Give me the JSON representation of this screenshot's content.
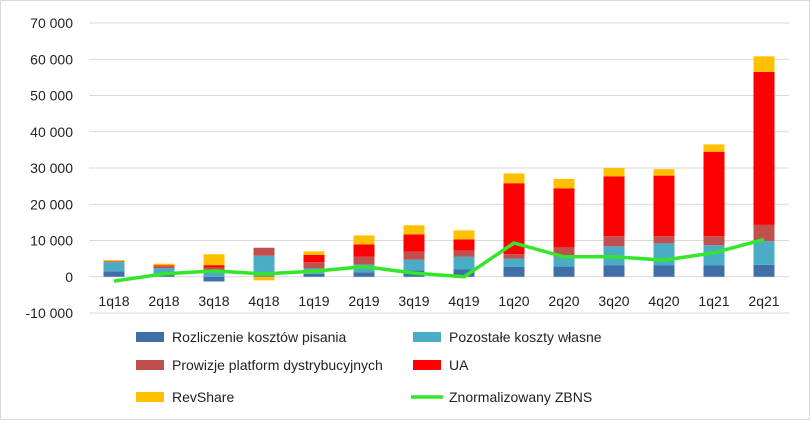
{
  "chart_data": {
    "type": "bar",
    "stacked": true,
    "categories": [
      "1q18",
      "2q18",
      "3q18",
      "4q18",
      "1q19",
      "2q19",
      "3q19",
      "4q19",
      "1q20",
      "2q20",
      "3q20",
      "4q20",
      "1q21",
      "2q21"
    ],
    "y_ticks": [
      "-10 000",
      "0",
      "10 000",
      "20 000",
      "30 000",
      "40 000",
      "50 000",
      "60 000",
      "70 000"
    ],
    "ylim": [
      -10000,
      70000
    ],
    "grid": true,
    "legend_position": "bottom",
    "series": [
      {
        "name": "Rozliczenie kosztów pisania",
        "type": "bar",
        "color": "#3f6fa6",
        "values": [
          1500,
          600,
          -1300,
          300,
          800,
          1200,
          1700,
          2000,
          2700,
          2800,
          3100,
          3200,
          3200,
          3300
        ]
      },
      {
        "name": "Pozostałe koszty własne",
        "type": "bar",
        "color": "#4bacc6",
        "values": [
          2500,
          1800,
          1800,
          5500,
          1500,
          2200,
          3000,
          3500,
          2300,
          2700,
          5300,
          6000,
          5500,
          6500
        ]
      },
      {
        "name": "Prowizje platform dystrybucyjnych",
        "type": "bar",
        "color": "#c0504d",
        "values": [
          300,
          500,
          700,
          2200,
          1700,
          2100,
          2200,
          1700,
          1200,
          2600,
          2800,
          2000,
          2500,
          4500
        ]
      },
      {
        "name": "UA",
        "type": "bar",
        "color": "#ff0000",
        "values": [
          0,
          200,
          700,
          0,
          2000,
          3400,
          4800,
          3100,
          19600,
          16300,
          16500,
          16700,
          23300,
          42200
        ]
      },
      {
        "name": "RevShare",
        "type": "bar",
        "color": "#ffc000",
        "values": [
          300,
          500,
          3000,
          -1000,
          1000,
          2500,
          2500,
          2500,
          2700,
          2600,
          2300,
          1800,
          2000,
          4300
        ]
      },
      {
        "name": "Znormalizowany ZBNS",
        "type": "line",
        "color": "#33e62a",
        "values": [
          -1200,
          800,
          1600,
          800,
          1500,
          2800,
          1000,
          0,
          9300,
          5500,
          5500,
          4600,
          6600,
          10300
        ]
      }
    ]
  }
}
